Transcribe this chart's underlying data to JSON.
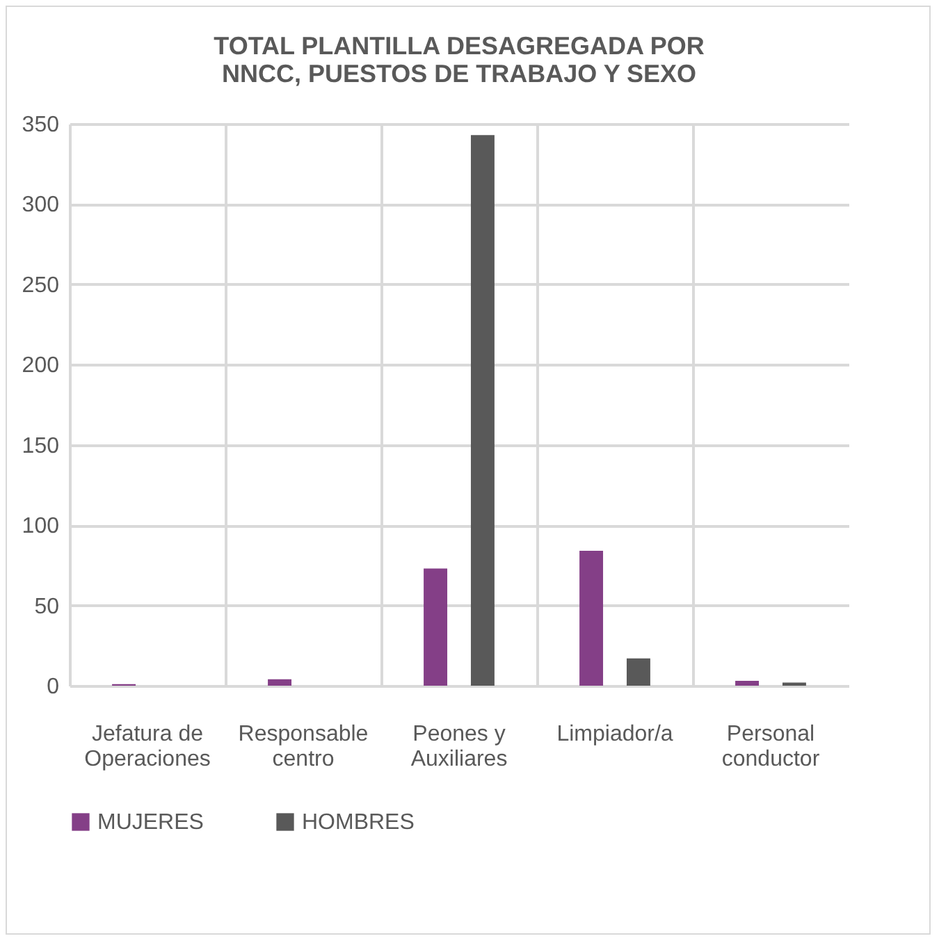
{
  "chart_data": {
    "type": "bar",
    "title": "TOTAL PLANTILLA DESAGREGADA POR NNCC, PUESTOS DE TRABAJO Y SEXO",
    "categories": [
      "Jefatura de Operaciones",
      "Responsable centro",
      "Peones y Auxiliares",
      "Limpiador/a",
      "Personal conductor"
    ],
    "series": [
      {
        "name": "MUJERES",
        "color": "#843f87",
        "values": [
          1,
          4,
          73,
          84,
          3
        ]
      },
      {
        "name": "HOMBRES",
        "color": "#595959",
        "values": [
          0,
          0,
          343,
          17,
          2
        ]
      }
    ],
    "ylim": [
      0,
      350
    ],
    "yticks": [
      0,
      50,
      100,
      150,
      200,
      250,
      300,
      350
    ],
    "grid": true,
    "legend": "bottom"
  }
}
